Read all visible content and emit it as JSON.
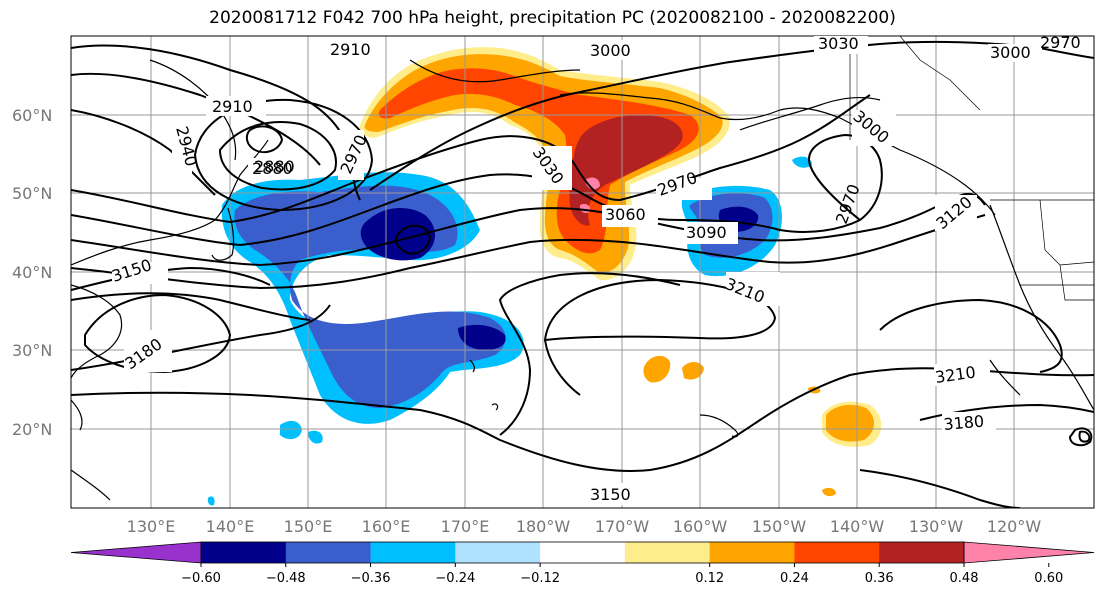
{
  "title": "2020081712 F042 700 hPa height, precipitation PC (2020082100 - 2020082200)",
  "lat_labels": [
    "60°N",
    "50°N",
    "40°N",
    "30°N",
    "20°N"
  ],
  "lon_labels": [
    "130°E",
    "140°E",
    "150°E",
    "160°E",
    "170°E",
    "180°W",
    "170°W",
    "160°W",
    "150°W",
    "140°W",
    "130°W",
    "120°W"
  ],
  "contour_labels": [
    "2910",
    "2880",
    "3000",
    "3030",
    "3000",
    "2970",
    "2910",
    "2940",
    "2880",
    "2970",
    "3030",
    "3060",
    "3090",
    "2970",
    "3000",
    "2970",
    "3120",
    "3150",
    "3180",
    "3210",
    "3210",
    "3180",
    "3150"
  ],
  "colorbar": {
    "ticks": [
      "−0.60",
      "−0.48",
      "−0.36",
      "−0.24",
      "−0.12",
      "0.12",
      "0.24",
      "0.36",
      "0.48",
      "0.60"
    ],
    "colors": [
      "#9932CC",
      "#00008B",
      "#3A5FCD",
      "#00BFFF",
      "#B0E2FF",
      "#FFFFFF",
      "#FFEC8B",
      "#FFA500",
      "#FF4500",
      "#B22222",
      "#FF82AB"
    ]
  },
  "shading_colors": {
    "neg_light": "#B0E2FF",
    "neg_mid": "#00BFFF",
    "neg_strong": "#3A5FCD",
    "neg_max": "#00008B",
    "pos_light": "#FFEC8B",
    "pos_mid": "#FFA500",
    "pos_strong": "#FF4500",
    "pos_max": "#B22222"
  }
}
